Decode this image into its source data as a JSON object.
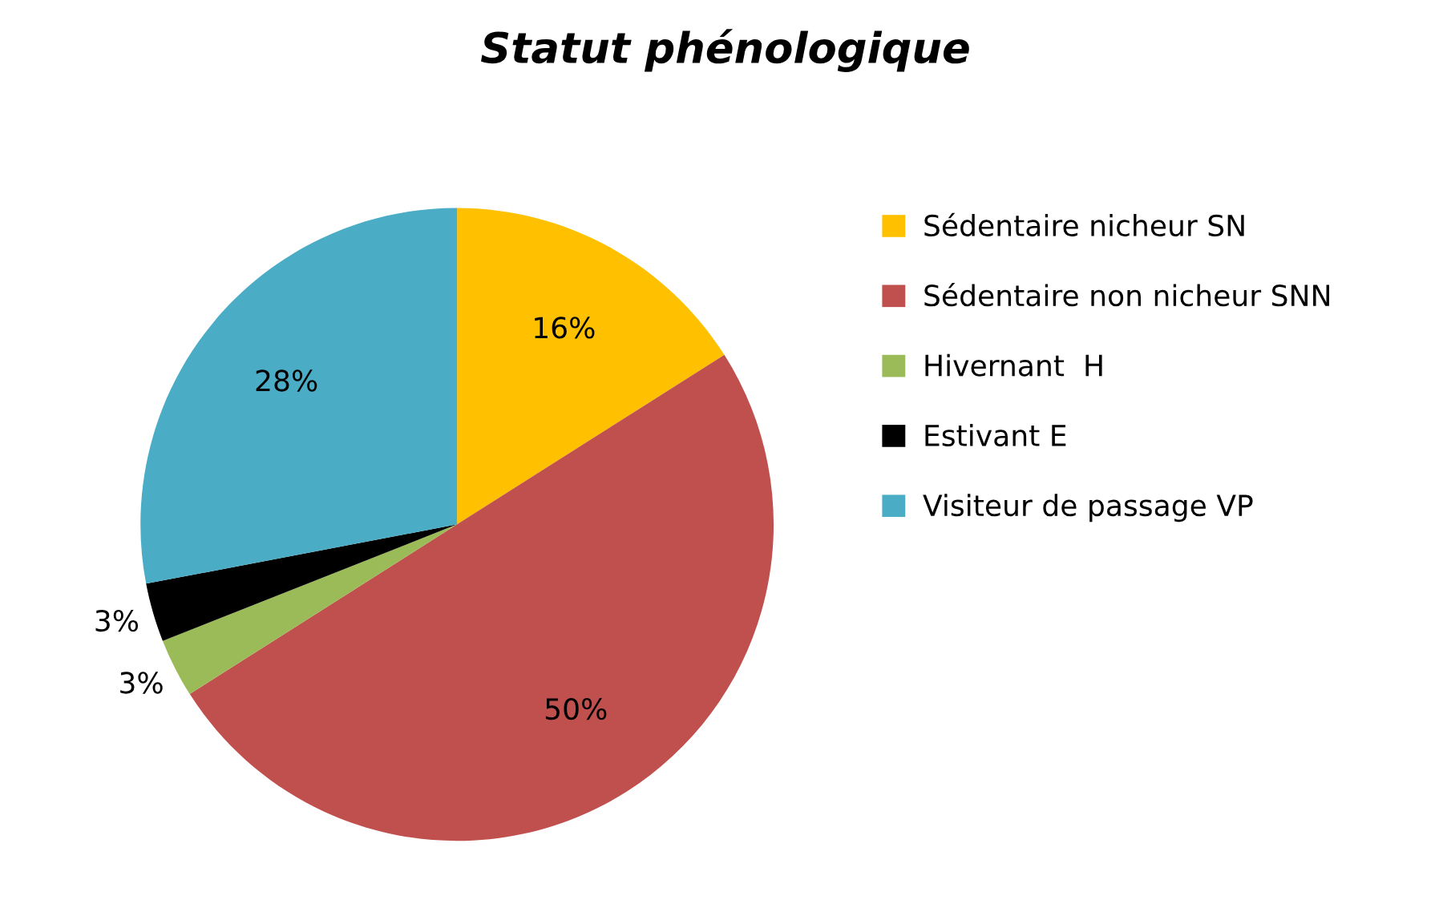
{
  "chart_data": {
    "type": "pie",
    "title": "Statut phénologique",
    "categories": [
      "Sédentaire nicheur SN",
      "Sédentaire non nicheur SNN",
      "Hivernant  H",
      "Estivant E",
      "Visiteur de passage VP"
    ],
    "values": [
      16,
      50,
      3,
      3,
      28
    ],
    "colors": [
      "#ffc000",
      "#c0504d",
      "#9bbb59",
      "#000000",
      "#4bacc6"
    ],
    "data_labels": true,
    "value_labels": [
      "16%",
      "50%",
      "3%",
      "3%",
      "28%"
    ],
    "legend": "right"
  }
}
